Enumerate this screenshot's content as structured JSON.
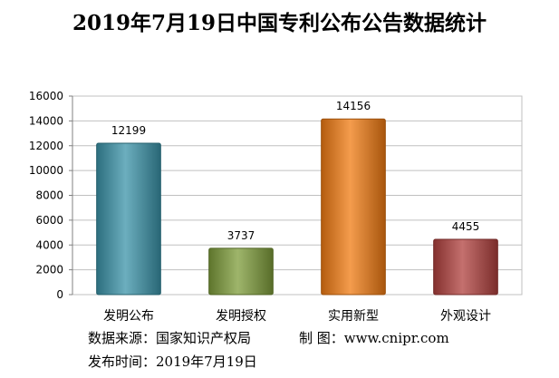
{
  "chart_data": {
    "type": "bar",
    "title": "2019年7月19日中国专利公布公告数据统计",
    "categories": [
      "发明公布",
      "发明授权",
      "实用新型",
      "外观设计"
    ],
    "values": [
      12199,
      3737,
      14156,
      4455
    ],
    "ylim": [
      0,
      16000
    ],
    "yticks": [
      0,
      2000,
      4000,
      6000,
      8000,
      10000,
      12000,
      14000,
      16000
    ],
    "grid": true,
    "bar_colors": [
      "#3b93a8",
      "#7d9c3a",
      "#f07b12",
      "#b0403d"
    ]
  },
  "footer": {
    "source_label": "数据来源：国家知识产权局",
    "maker_label": "制 图：www.cnipr.com",
    "date_label": "发布时间：2019年7月19日"
  }
}
